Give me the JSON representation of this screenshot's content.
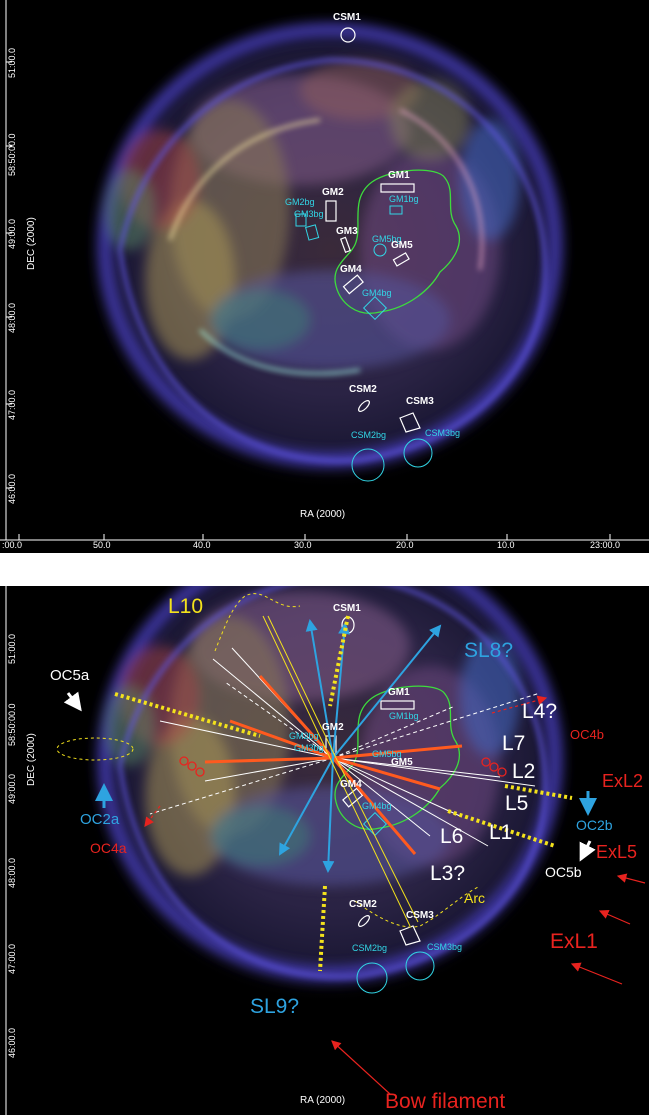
{
  "top_panel": {
    "region_labels": {
      "csm1": "CSM1",
      "gm1": "GM1",
      "gm1bg": "GM1bg",
      "gm2": "GM2",
      "gm2bg": "GM2bg",
      "gm3": "GM3",
      "gm3bg": "GM3bg",
      "gm4": "GM4",
      "gm4bg": "GM4bg",
      "gm5": "GM5",
      "gm5bg": "GM5bg",
      "csm2": "CSM2",
      "csm2bg": "CSM2bg",
      "csm3": "CSM3",
      "csm3bg": "CSM3bg"
    },
    "x_axis_label": "RA (2000)",
    "y_axis_label": "DEC (2000)",
    "x_ticks": [
      ":00.0",
      "50.0",
      "40.0",
      "30.0",
      "20.0",
      "10.0",
      "23:00.0"
    ],
    "y_ticks": [
      "51:00.0",
      "58:50:00.0",
      "49:00.0",
      "48:00.0",
      "47:00.0",
      "46:00.0"
    ]
  },
  "bottom_panel": {
    "x_axis_label": "RA (2000)",
    "y_axis_label": "DEC (2000)",
    "y_ticks": [
      "51:00.0",
      "58:50:00.0",
      "49:00.0",
      "48:00.0",
      "47:00.0",
      "46:00.0"
    ],
    "labels": {
      "l10": "L10",
      "sl8": "SL8?",
      "oc5a": "OC5a",
      "l4": "L4?",
      "oc4b": "OC4b",
      "l7": "L7",
      "l2": "L2",
      "exl2": "ExL2",
      "oc2a": "OC2a",
      "oc2b": "OC2b",
      "l5": "L5",
      "exl5": "ExL5",
      "oc4a": "OC4a",
      "l6": "L6",
      "l1": "L1",
      "oc5b": "OC5b",
      "l3": "L3?",
      "arc": "Arc",
      "exl1": "ExL1",
      "sl9": "SL9?",
      "bow": "Bow filament",
      "csm1": "CSM1",
      "gm1": "GM1",
      "gm1bg": "GM1bg",
      "gm2": "GM2",
      "gm2bg": "GM2bg",
      "gm3bg": "GM3bg",
      "gm4": "GM4",
      "gm4bg": "GM4bg",
      "gm5": "GM5",
      "gm5bg": "GM5bg",
      "csm2": "CSM2",
      "csm2bg": "CSM2bg",
      "csm3": "CSM3",
      "csm3bg": "CSM3bg"
    }
  },
  "colors": {
    "background": "#000000",
    "region_outline": "#ffffff",
    "background_region": "#32d6e6",
    "contour": "#3ddc3d",
    "annotation_red": "#e8231f",
    "annotation_yellow": "#f3e21c",
    "annotation_blue": "#2ea3e0"
  }
}
